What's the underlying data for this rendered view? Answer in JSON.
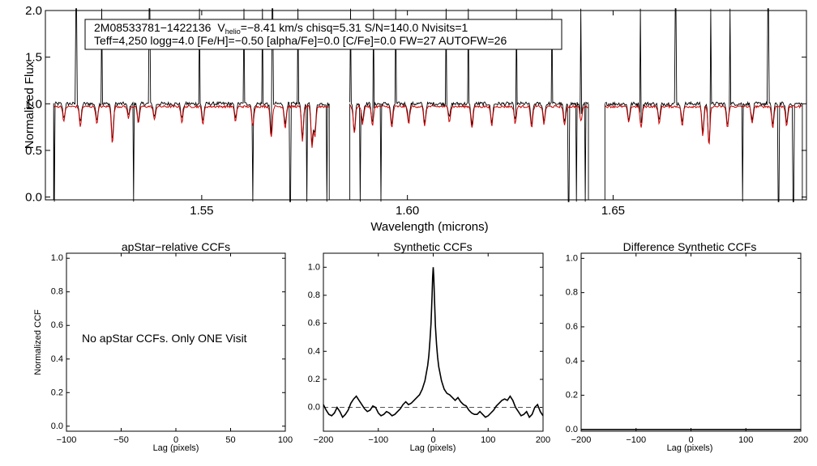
{
  "chart_data": [
    {
      "id": "spectrum",
      "type": "line",
      "xlabel": "Wavelength (microns)",
      "ylabel": "Normalized Flux",
      "xlim": [
        1.512,
        1.697
      ],
      "ylim": [
        -0.03,
        2.0
      ],
      "xticks": [
        "1.55",
        "1.60",
        "1.65"
      ],
      "yticks": [
        "0.0",
        "0.5",
        "1.0",
        "1.5",
        "2.0"
      ],
      "annotation": {
        "star_id": "2M08533781−1422136",
        "v_prefix": "V",
        "v_sub": "helio",
        "v_rest": "=−8.41 km/s  chisq=5.31  S/N=140.0  Nvisits=1",
        "params": "Teff=4,250 logg=4.0 [Fe/H]=−0.50 [alpha/Fe]=0.0 [C/Fe]=0.0 FW=27 AUTOFW=26"
      },
      "chips": [
        [
          1.514,
          1.581
        ],
        [
          1.586,
          1.644
        ],
        [
          1.648,
          1.696
        ]
      ],
      "series": [
        {
          "name": "observed",
          "color": "#000000",
          "continuum": 1.0,
          "noise": 0.02
        },
        {
          "name": "synthetic",
          "color": "#cc0000",
          "continuum": 0.97,
          "noise": 0.012
        }
      ],
      "absorption_lines": [
        {
          "x": 1.5165,
          "depth": 0.15
        },
        {
          "x": 1.5205,
          "depth": 0.2
        },
        {
          "x": 1.5245,
          "depth": 0.17
        },
        {
          "x": 1.5283,
          "depth": 0.38
        },
        {
          "x": 1.5322,
          "depth": 0.12
        },
        {
          "x": 1.5346,
          "depth": 0.18
        },
        {
          "x": 1.5385,
          "depth": 0.14
        },
        {
          "x": 1.5452,
          "depth": 0.16
        },
        {
          "x": 1.5503,
          "depth": 0.18
        },
        {
          "x": 1.5582,
          "depth": 0.15
        },
        {
          "x": 1.5624,
          "depth": 0.2
        },
        {
          "x": 1.5669,
          "depth": 0.32
        },
        {
          "x": 1.5703,
          "depth": 0.22
        },
        {
          "x": 1.5745,
          "depth": 0.35
        },
        {
          "x": 1.5768,
          "depth": 0.42
        },
        {
          "x": 1.5775,
          "depth": 0.3
        },
        {
          "x": 1.5871,
          "depth": 0.28
        },
        {
          "x": 1.5891,
          "depth": 0.18
        },
        {
          "x": 1.5915,
          "depth": 0.2
        },
        {
          "x": 1.5962,
          "depth": 0.22
        },
        {
          "x": 1.6003,
          "depth": 0.18
        },
        {
          "x": 1.6042,
          "depth": 0.2
        },
        {
          "x": 1.6102,
          "depth": 0.15
        },
        {
          "x": 1.6157,
          "depth": 0.22
        },
        {
          "x": 1.6205,
          "depth": 0.2
        },
        {
          "x": 1.6262,
          "depth": 0.17
        },
        {
          "x": 1.6302,
          "depth": 0.22
        },
        {
          "x": 1.6332,
          "depth": 0.18
        },
        {
          "x": 1.6382,
          "depth": 0.2
        },
        {
          "x": 1.6422,
          "depth": 0.15
        },
        {
          "x": 1.6538,
          "depth": 0.17
        },
        {
          "x": 1.6568,
          "depth": 0.22
        },
        {
          "x": 1.6612,
          "depth": 0.18
        },
        {
          "x": 1.6668,
          "depth": 0.2
        },
        {
          "x": 1.6718,
          "depth": 0.3
        },
        {
          "x": 1.6733,
          "depth": 0.4
        },
        {
          "x": 1.6778,
          "depth": 0.22
        },
        {
          "x": 1.6838,
          "depth": 0.18
        },
        {
          "x": 1.6888,
          "depth": 0.22
        },
        {
          "x": 1.6922,
          "depth": 0.2
        }
      ],
      "bad_pixels_low": [
        1.5142,
        1.5335,
        1.5624,
        1.5715,
        1.5755,
        1.5804,
        1.5885,
        1.5935,
        1.6392,
        1.6411,
        1.6432,
        1.6815,
        1.6902,
        1.6938
      ],
      "bad_pixels_high": [
        1.5195,
        1.5257,
        1.5373,
        1.5495,
        1.5603,
        1.5648,
        1.5672,
        1.5734,
        1.5862,
        1.5918,
        1.5972,
        1.6094,
        1.6148,
        1.6265,
        1.6352,
        1.6422,
        1.6465,
        1.6567,
        1.6652,
        1.6738,
        1.6784,
        1.6877
      ]
    },
    {
      "id": "apstar-ccf",
      "type": "line",
      "title": "apStar−relative CCFs",
      "xlabel": "Lag (pixels)",
      "ylabel": "Normalized CCF",
      "xlim": [
        -100,
        100
      ],
      "ylim": [
        -0.03,
        1.03
      ],
      "xticks": [
        "−100",
        "−50",
        "0",
        "50",
        "100"
      ],
      "yticks": [
        "0.0",
        "0.2",
        "0.4",
        "0.6",
        "0.8",
        "1.0"
      ],
      "message": "No apStar CCFs.  Only ONE Visit",
      "series": []
    },
    {
      "id": "synthetic-ccf",
      "type": "line",
      "title": "Synthetic CCFs",
      "xlabel": "Lag (pixels)",
      "ylabel": "",
      "xlim": [
        -200,
        200
      ],
      "ylim": [
        -0.17,
        1.1
      ],
      "xticks": [
        "−200",
        "−100",
        "0",
        "100",
        "200"
      ],
      "yticks": [
        "0.0",
        "0.2",
        "0.4",
        "0.6",
        "0.8",
        "1.0"
      ],
      "zero_line": 0.0,
      "series": [
        {
          "name": "synthetic CCF",
          "color": "#000000",
          "x": [
            -200,
            -195,
            -190,
            -185,
            -180,
            -175,
            -170,
            -165,
            -160,
            -155,
            -150,
            -145,
            -140,
            -135,
            -130,
            -125,
            -120,
            -115,
            -110,
            -105,
            -100,
            -95,
            -90,
            -85,
            -80,
            -75,
            -70,
            -65,
            -60,
            -55,
            -50,
            -45,
            -40,
            -35,
            -30,
            -25,
            -20,
            -15,
            -10,
            -8,
            -6,
            -4,
            -2,
            -1,
            0,
            1,
            2,
            4,
            6,
            8,
            10,
            15,
            20,
            25,
            30,
            35,
            40,
            45,
            50,
            55,
            60,
            65,
            70,
            75,
            80,
            85,
            90,
            95,
            100,
            105,
            110,
            115,
            120,
            125,
            130,
            135,
            140,
            145,
            150,
            155,
            160,
            165,
            170,
            175,
            180,
            185,
            190,
            195,
            200
          ],
          "y": [
            0.02,
            -0.02,
            -0.05,
            -0.06,
            -0.04,
            0.0,
            -0.03,
            -0.07,
            -0.05,
            -0.02,
            0.03,
            0.06,
            0.08,
            0.05,
            0.02,
            -0.01,
            -0.03,
            -0.02,
            0.01,
            0.0,
            -0.04,
            -0.06,
            -0.05,
            -0.03,
            -0.04,
            -0.06,
            -0.05,
            -0.03,
            -0.01,
            0.02,
            0.04,
            0.02,
            0.03,
            0.05,
            0.07,
            0.09,
            0.13,
            0.19,
            0.3,
            0.37,
            0.47,
            0.6,
            0.8,
            0.93,
            1.0,
            0.93,
            0.8,
            0.58,
            0.45,
            0.36,
            0.29,
            0.19,
            0.13,
            0.1,
            0.09,
            0.07,
            0.05,
            0.07,
            0.04,
            0.02,
            0.01,
            -0.02,
            -0.04,
            -0.05,
            -0.05,
            -0.03,
            -0.05,
            -0.07,
            -0.06,
            -0.04,
            -0.02,
            0.01,
            0.03,
            0.05,
            0.06,
            0.05,
            0.08,
            0.05,
            0.0,
            -0.03,
            -0.06,
            -0.05,
            -0.03,
            -0.07,
            -0.05,
            0.0,
            0.02,
            -0.03,
            -0.06
          ]
        }
      ]
    },
    {
      "id": "difference-ccf",
      "type": "line",
      "title": "Difference Synthetic CCFs",
      "xlabel": "Lag (pixels)",
      "ylabel": "",
      "xlim": [
        -200,
        200
      ],
      "ylim": [
        -0.01,
        1.03
      ],
      "xticks": [
        "−200",
        "−100",
        "0",
        "100",
        "200"
      ],
      "yticks": [
        "0.0",
        "0.2",
        "0.4",
        "0.6",
        "0.8",
        "1.0"
      ],
      "series": [
        {
          "name": "difference",
          "color": "#000000",
          "x": [
            -200,
            200
          ],
          "y": [
            0.0,
            0.0
          ]
        }
      ]
    }
  ]
}
